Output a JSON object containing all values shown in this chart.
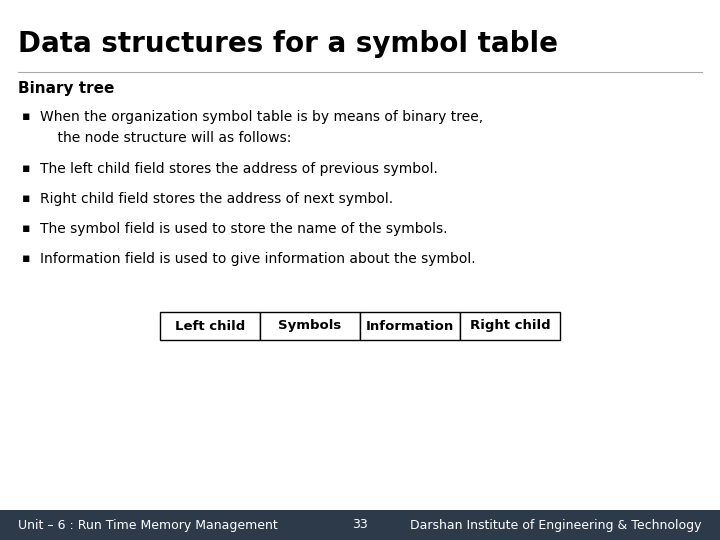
{
  "title": "Data structures for a symbol table",
  "subtitle": "Binary tree",
  "bullet_points": [
    "When the organization symbol table is by means of binary tree,\n    the node structure will as follows:",
    "The left child field stores the address of previous symbol.",
    "Right child field stores the address of next symbol.",
    "The symbol field is used to store the name of the symbols.",
    "Information field is used to give information about the symbol."
  ],
  "table_cells": [
    "Left child",
    "Symbols",
    "Information",
    "Right child"
  ],
  "footer_left": "Unit – 6 : Run Time Memory Management",
  "footer_number": "33",
  "footer_right": "Darshan Institute of Engineering & Technology",
  "bg_color": "#ffffff",
  "title_color": "#000000",
  "subtitle_color": "#000000",
  "body_color": "#000000",
  "footer_bg": "#2d3a4a",
  "footer_text_color": "#ffffff",
  "title_fontsize": 20,
  "subtitle_fontsize": 11,
  "body_fontsize": 10,
  "table_fontsize": 9.5,
  "footer_fontsize": 9
}
